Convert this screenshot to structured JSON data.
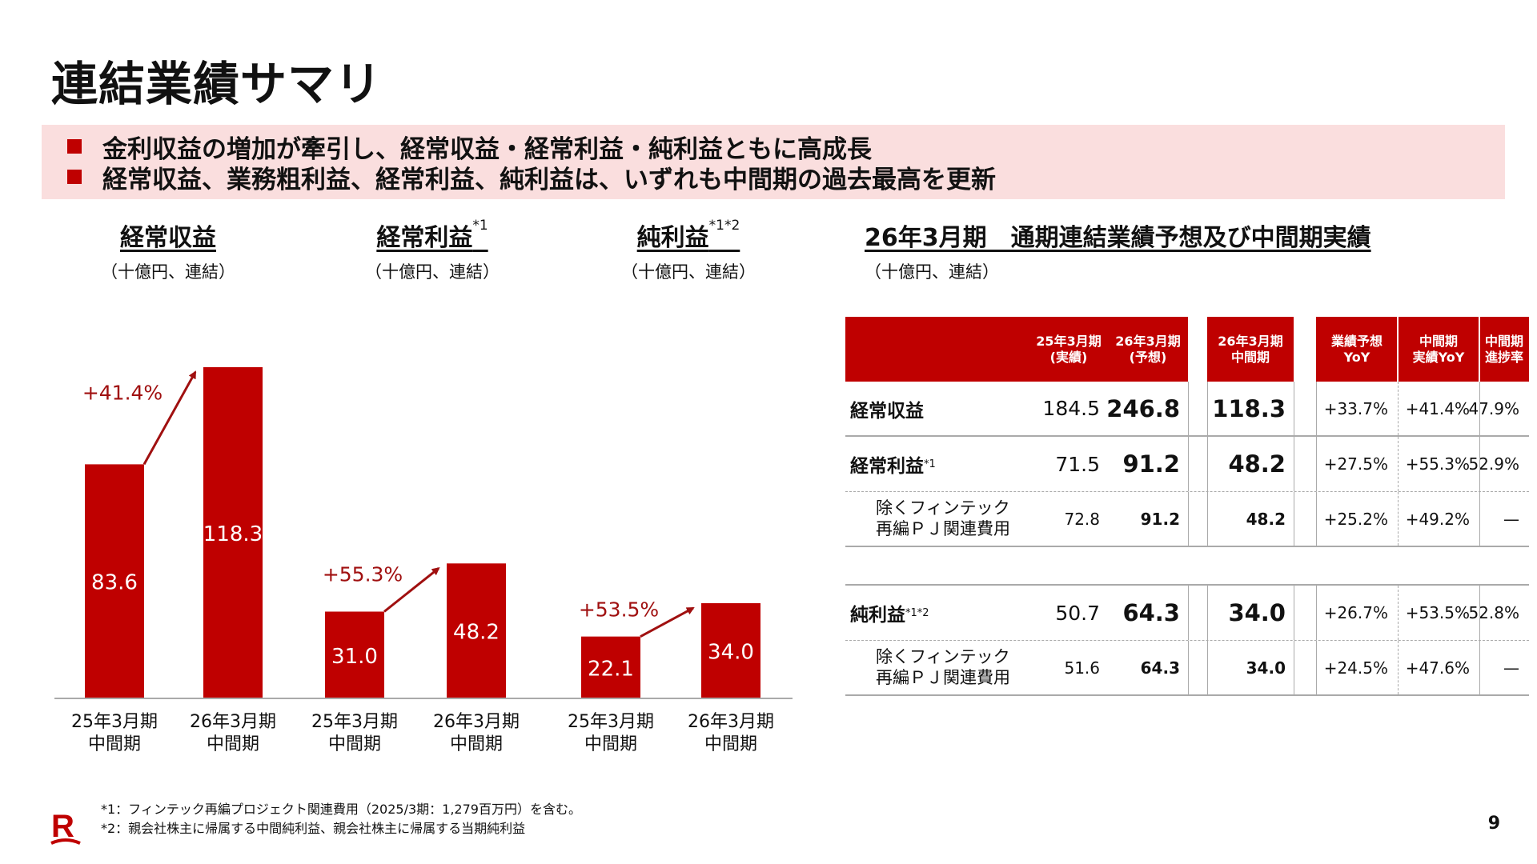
{
  "title": "連結業績サマリ",
  "highlights": [
    "金利収益の増加が牽引し、経常収益・経常利益・純利益ともに高成長",
    "経常収益、業務粗利益、経常利益、純利益は、いずれも中間期の過去最高を更新"
  ],
  "colors": {
    "accent": "#bf0000",
    "highlight_bg": "#fadede",
    "arrow": "#a01010",
    "rule": "#aaaaaa"
  },
  "charts_meta": [
    {
      "title": "経常収益",
      "sup": "",
      "unit": "（十億円、連結）"
    },
    {
      "title": "経常利益",
      "sup": "*1",
      "unit": "（十億円、連結）"
    },
    {
      "title": "純利益",
      "sup": "*1*2",
      "unit": "（十億円、連結）"
    }
  ],
  "chart_data": [
    {
      "type": "bar",
      "title": "経常収益",
      "categories": [
        "25年3月期\n中間期",
        "26年3月期\n中間期"
      ],
      "values": [
        83.6,
        118.3
      ],
      "growth": "+41.4%",
      "ylim": [
        0,
        130
      ]
    },
    {
      "type": "bar",
      "title": "経常利益",
      "categories": [
        "25年3月期\n中間期",
        "26年3月期\n中間期"
      ],
      "values": [
        31.0,
        48.2
      ],
      "growth": "+55.3%",
      "ylim": [
        0,
        130
      ]
    },
    {
      "type": "bar",
      "title": "純利益",
      "categories": [
        "25年3月期\n中間期",
        "26年3月期\n中間期"
      ],
      "values": [
        22.1,
        34.0
      ],
      "growth": "+53.5%",
      "ylim": [
        0,
        130
      ]
    }
  ],
  "table": {
    "title": "26年3月期　通期連結業績予想及び中間期実績",
    "unit": "（十億円、連結）",
    "headers": [
      "",
      "25年3月期\n(実績)",
      "26年3月期\n(予想)",
      "26年3月期\n中間期",
      "業績予想\nYoY",
      "中間期\n実績YoY",
      "中間期\n進捗率"
    ],
    "rows": [
      {
        "label": "経常収益",
        "sup": "",
        "values": [
          "184.5",
          "246.8",
          "118.3",
          "+33.7%",
          "+41.4%",
          "47.9%"
        ]
      },
      {
        "label": "経常利益",
        "sup": "*1",
        "values": [
          "71.5",
          "91.2",
          "48.2",
          "+27.5%",
          "+55.3%",
          "52.9%"
        ]
      },
      {
        "label": "除くフィンテック\n再編ＰＪ関連費用",
        "sup": "",
        "values": [
          "72.8",
          "91.2",
          "48.2",
          "+25.2%",
          "+49.2%",
          "—"
        ]
      },
      {
        "label": "純利益",
        "sup": "*1*2",
        "values": [
          "50.7",
          "64.3",
          "34.0",
          "+26.7%",
          "+53.5%",
          "52.8%"
        ]
      },
      {
        "label": "除くフィンテック\n再編ＰＪ関連費用",
        "sup": "",
        "values": [
          "51.6",
          "64.3",
          "34.0",
          "+24.5%",
          "+47.6%",
          "—"
        ]
      }
    ]
  },
  "footnotes": [
    "*1：フィンテック再編プロジェクト関連費用（2025/3期：1,279百万円）を含む。",
    "*2：親会社株主に帰属する中間純利益、親会社株主に帰属する当期純利益"
  ],
  "page_number": "9",
  "logo_letter": "R"
}
